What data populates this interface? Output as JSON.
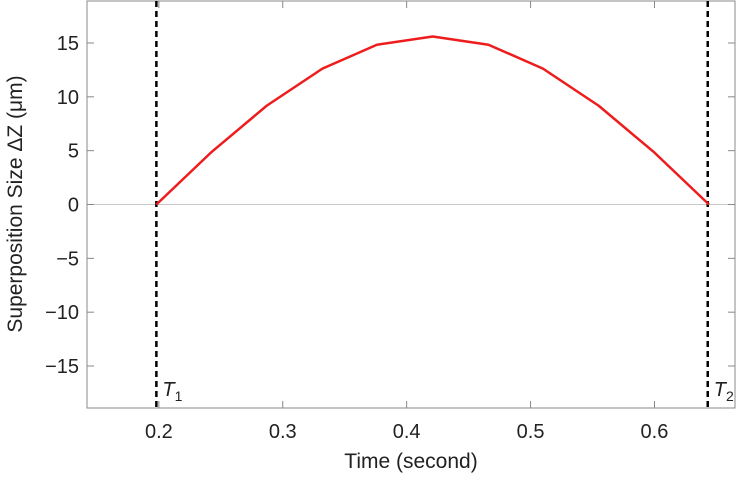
{
  "chart_data": {
    "type": "line",
    "x_label": "Time (second)",
    "y_label": "Superposition Size ΔZ (μm)",
    "x": [
      0.198,
      0.242,
      0.287,
      0.332,
      0.376,
      0.421,
      0.466,
      0.51,
      0.555,
      0.6,
      0.644
    ],
    "series": [
      {
        "color": "#ee1c1c",
        "values": [
          0,
          4.82,
          9.17,
          12.62,
          14.84,
          15.6,
          14.84,
          12.62,
          9.17,
          4.82,
          0
        ]
      }
    ],
    "xlim": [
      0.142,
      0.665
    ],
    "xticks": [
      0.2,
      0.3,
      0.4,
      0.5,
      0.6
    ],
    "ylim": [
      -18.9,
      18.9
    ],
    "yticks": [
      {
        "value": -15,
        "label": "−15"
      },
      {
        "value": -10,
        "label": "−10"
      },
      {
        "value": -5,
        "label": "−5"
      },
      0,
      5,
      10,
      15
    ],
    "zero_line": true,
    "vlines": [
      {
        "x": 0.198,
        "label": "T",
        "sub": "1"
      },
      {
        "x": 0.643,
        "label": "T",
        "sub": "2"
      }
    ]
  }
}
